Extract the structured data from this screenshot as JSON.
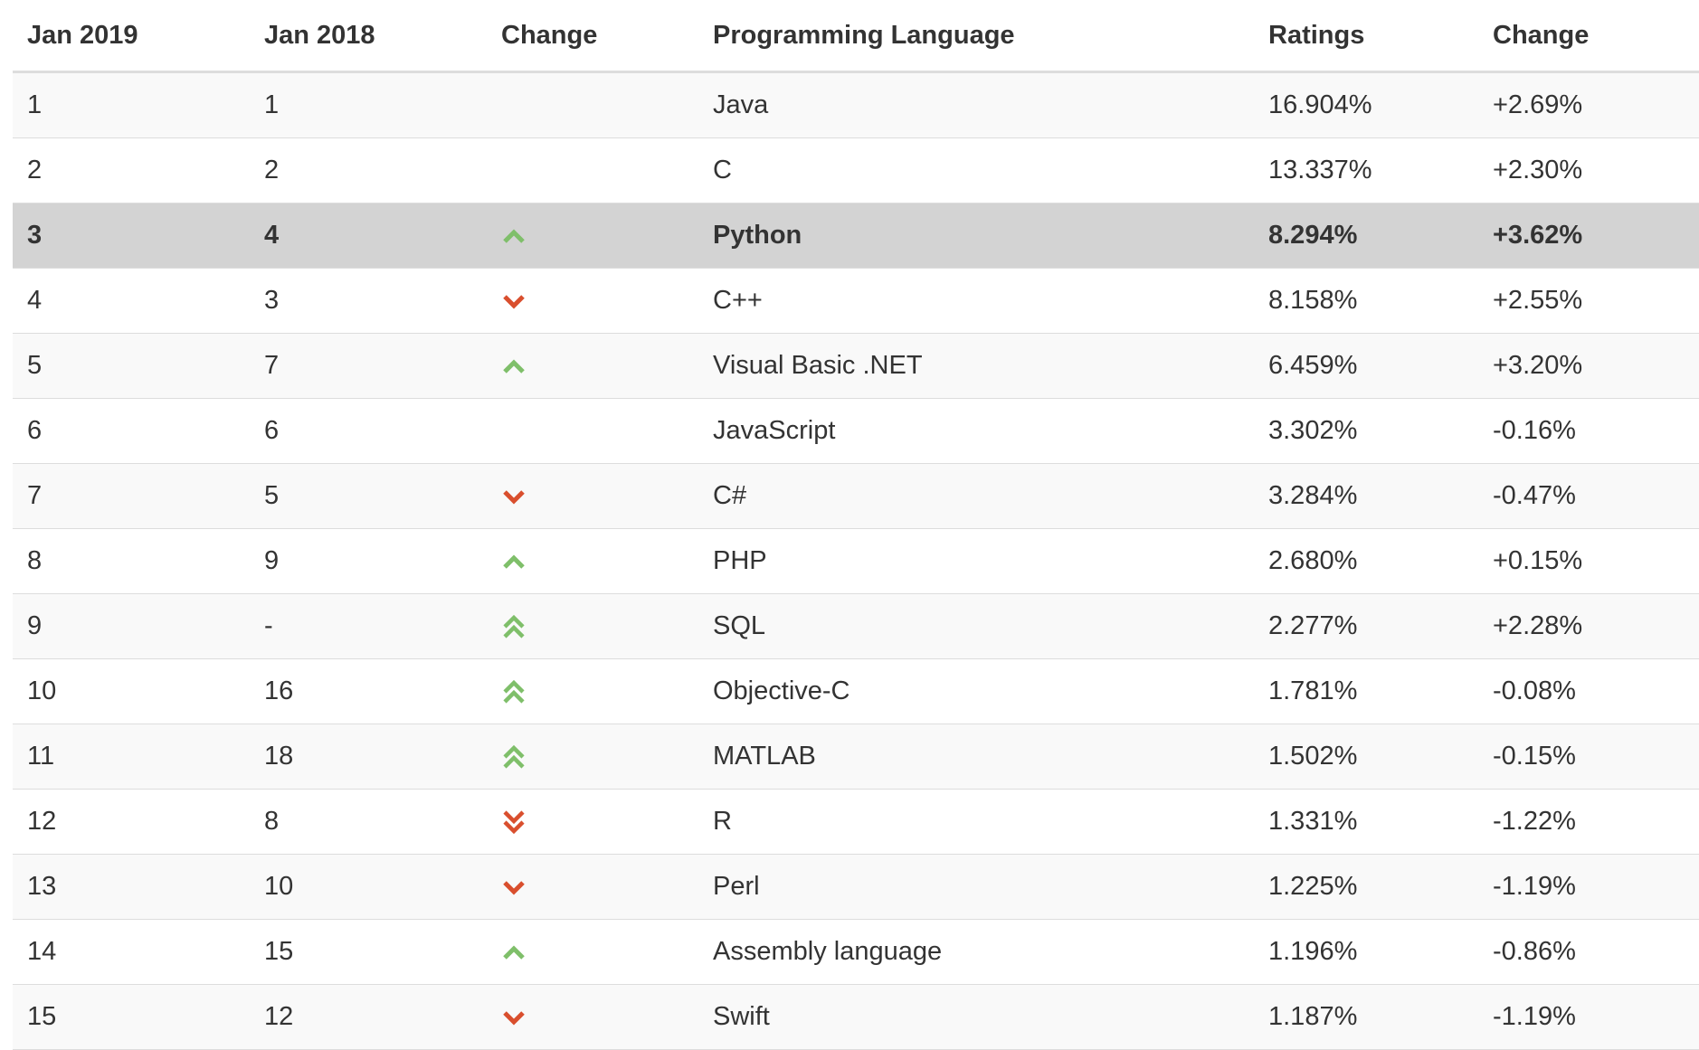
{
  "colors": {
    "up": "#7fbf6a",
    "down": "#d94f2e",
    "highlight_row": "#d3d3d3"
  },
  "headers": [
    "Jan 2019",
    "Jan 2018",
    "Change",
    "Programming Language",
    "Ratings",
    "Change"
  ],
  "rows": [
    {
      "jan2019": "1",
      "jan2018": "1",
      "trend": "none",
      "language": "Java",
      "rating": "16.904%",
      "change": "+2.69%"
    },
    {
      "jan2019": "2",
      "jan2018": "2",
      "trend": "none",
      "language": "C",
      "rating": "13.337%",
      "change": "+2.30%"
    },
    {
      "jan2019": "3",
      "jan2018": "4",
      "trend": "up",
      "language": "Python",
      "rating": "8.294%",
      "change": "+3.62%",
      "highlighted": true
    },
    {
      "jan2019": "4",
      "jan2018": "3",
      "trend": "down",
      "language": "C++",
      "rating": "8.158%",
      "change": "+2.55%"
    },
    {
      "jan2019": "5",
      "jan2018": "7",
      "trend": "up",
      "language": "Visual Basic .NET",
      "rating": "6.459%",
      "change": "+3.20%"
    },
    {
      "jan2019": "6",
      "jan2018": "6",
      "trend": "none",
      "language": "JavaScript",
      "rating": "3.302%",
      "change": "-0.16%"
    },
    {
      "jan2019": "7",
      "jan2018": "5",
      "trend": "down",
      "language": "C#",
      "rating": "3.284%",
      "change": "-0.47%"
    },
    {
      "jan2019": "8",
      "jan2018": "9",
      "trend": "up",
      "language": "PHP",
      "rating": "2.680%",
      "change": "+0.15%"
    },
    {
      "jan2019": "9",
      "jan2018": "-",
      "trend": "double-up",
      "language": "SQL",
      "rating": "2.277%",
      "change": "+2.28%"
    },
    {
      "jan2019": "10",
      "jan2018": "16",
      "trend": "double-up",
      "language": "Objective-C",
      "rating": "1.781%",
      "change": "-0.08%"
    },
    {
      "jan2019": "11",
      "jan2018": "18",
      "trend": "double-up",
      "language": "MATLAB",
      "rating": "1.502%",
      "change": "-0.15%"
    },
    {
      "jan2019": "12",
      "jan2018": "8",
      "trend": "double-down",
      "language": "R",
      "rating": "1.331%",
      "change": "-1.22%"
    },
    {
      "jan2019": "13",
      "jan2018": "10",
      "trend": "down",
      "language": "Perl",
      "rating": "1.225%",
      "change": "-1.19%"
    },
    {
      "jan2019": "14",
      "jan2018": "15",
      "trend": "up",
      "language": "Assembly language",
      "rating": "1.196%",
      "change": "-0.86%"
    },
    {
      "jan2019": "15",
      "jan2018": "12",
      "trend": "down",
      "language": "Swift",
      "rating": "1.187%",
      "change": "-1.19%"
    }
  ]
}
